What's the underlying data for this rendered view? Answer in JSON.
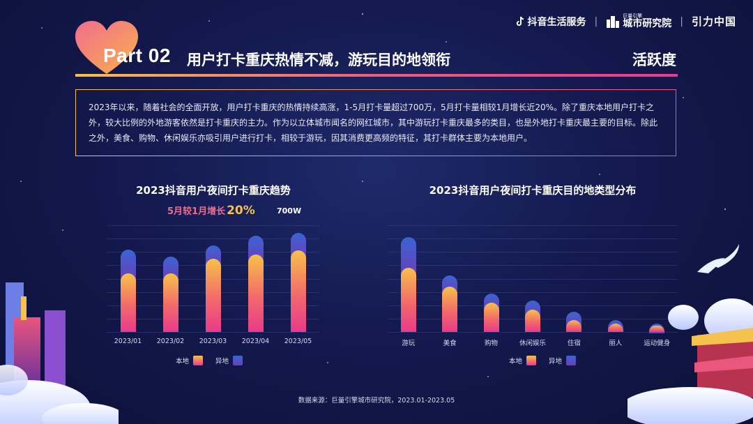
{
  "brand": {
    "douyin": "抖音生活服务",
    "sep": "|",
    "research_small": "巨量引擎",
    "research": "城市研究院",
    "yinli": "引力中国"
  },
  "header": {
    "part": "Part 02",
    "title": "用户打卡重庆热情不减，游玩目的地领衔",
    "tag": "活跃度"
  },
  "intro": "2023年以来，随着社会的全面开放，用户打卡重庆的热情持续高涨，1-5月打卡量超过700万，5月打卡量相较1月增长近20%。除了重庆本地用户打卡之外，较大比例的外地游客依然是打卡重庆的主力。作为以立体城市闻名的网红城市，其中游玩打卡重庆最多的类目，也是外地打卡重庆最主要的目标。除此之外，美食、购物、休闲娱乐亦吸引用户进行打卡，相较于游玩，因其消费更高频的特征，其打卡群体主要为本地用户。",
  "left_chart": {
    "annotation_prefix": "5月较1月增长",
    "annotation_value": "20%",
    "total_label": "700W"
  },
  "legend": {
    "local": "本地",
    "other": "异地"
  },
  "chart_data": [
    {
      "type": "bar",
      "title": "2023抖音用户夜间打卡重庆趋势",
      "categories": [
        "2023/01",
        "2023/02",
        "2023/03",
        "2023/04",
        "2023/05"
      ],
      "series": [
        {
          "name": "本地",
          "values": [
            88,
            88,
            110,
            116,
            122
          ]
        },
        {
          "name": "异地",
          "values": [
            35,
            25,
            20,
            28,
            27
          ]
        }
      ],
      "ylim": [
        0,
        160
      ],
      "grid": true,
      "legend_position": "bottom"
    },
    {
      "type": "bar",
      "title": "2023抖音用户夜间打卡重庆目的地类型分布",
      "categories": [
        "游玩",
        "美食",
        "购物",
        "休闲娱乐",
        "住宿",
        "丽人",
        "运动健身"
      ],
      "series": [
        {
          "name": "本地",
          "values": [
            96,
            68,
            44,
            34,
            18,
            13,
            9
          ]
        },
        {
          "name": "异地",
          "values": [
            46,
            17,
            14,
            13,
            12,
            5,
            4
          ]
        }
      ],
      "ylim": [
        0,
        160
      ],
      "grid": true,
      "legend_position": "bottom"
    }
  ],
  "source": "数据来源：巨量引擎城市研究院，2023.01-2023.05",
  "colors": {
    "local_top": "#f7c14a",
    "local_bottom": "#e83a8c",
    "other_top": "#3a64d4",
    "other_bottom": "#6a3fb8",
    "accent": "#f26b8a"
  }
}
